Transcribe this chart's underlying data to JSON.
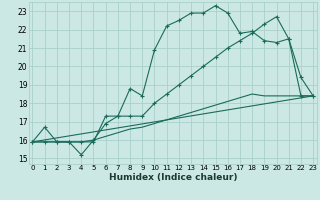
{
  "xlabel": "Humidex (Indice chaleur)",
  "bg_color": "#cce8e4",
  "grid_color": "#aacfca",
  "line_color": "#1a6b5a",
  "x_ticks": [
    0,
    1,
    2,
    3,
    4,
    5,
    6,
    7,
    8,
    9,
    10,
    11,
    12,
    13,
    14,
    15,
    16,
    17,
    18,
    19,
    20,
    21,
    22,
    23
  ],
  "y_ticks": [
    15,
    16,
    17,
    18,
    19,
    20,
    21,
    22,
    23
  ],
  "xlim": [
    -0.3,
    23.3
  ],
  "ylim": [
    14.7,
    23.5
  ],
  "series1_x": [
    0,
    1,
    2,
    3,
    4,
    5,
    6,
    7,
    8,
    9,
    10,
    11,
    12,
    13,
    14,
    15,
    16,
    17,
    18,
    19,
    20,
    21,
    22,
    23
  ],
  "series1_y": [
    15.9,
    15.9,
    15.9,
    15.9,
    15.2,
    16.0,
    16.9,
    17.3,
    18.8,
    18.4,
    20.9,
    22.2,
    22.5,
    22.9,
    22.9,
    23.3,
    22.9,
    21.8,
    21.9,
    21.4,
    21.3,
    21.5,
    19.4,
    18.4
  ],
  "series2_x": [
    0,
    1,
    2,
    3,
    4,
    5,
    6,
    7,
    8,
    9,
    10,
    11,
    12,
    13,
    14,
    15,
    16,
    17,
    18,
    19,
    20,
    21,
    22,
    23
  ],
  "series2_y": [
    15.9,
    16.7,
    15.9,
    15.9,
    15.9,
    15.9,
    17.3,
    17.3,
    17.3,
    17.3,
    18.0,
    18.5,
    19.0,
    19.5,
    20.0,
    20.5,
    21.0,
    21.4,
    21.8,
    22.3,
    22.7,
    21.5,
    18.4,
    18.4
  ],
  "series3_x": [
    0,
    23
  ],
  "series3_y": [
    15.9,
    18.4
  ],
  "series4_x": [
    0,
    1,
    2,
    3,
    4,
    5,
    6,
    7,
    8,
    9,
    10,
    11,
    12,
    13,
    14,
    15,
    16,
    17,
    18,
    19,
    20,
    21,
    22,
    23
  ],
  "series4_y": [
    15.9,
    15.9,
    15.9,
    15.9,
    15.9,
    16.0,
    16.2,
    16.4,
    16.6,
    16.7,
    16.9,
    17.1,
    17.3,
    17.5,
    17.7,
    17.9,
    18.1,
    18.3,
    18.5,
    18.4,
    18.4,
    18.4,
    18.4,
    18.4
  ]
}
